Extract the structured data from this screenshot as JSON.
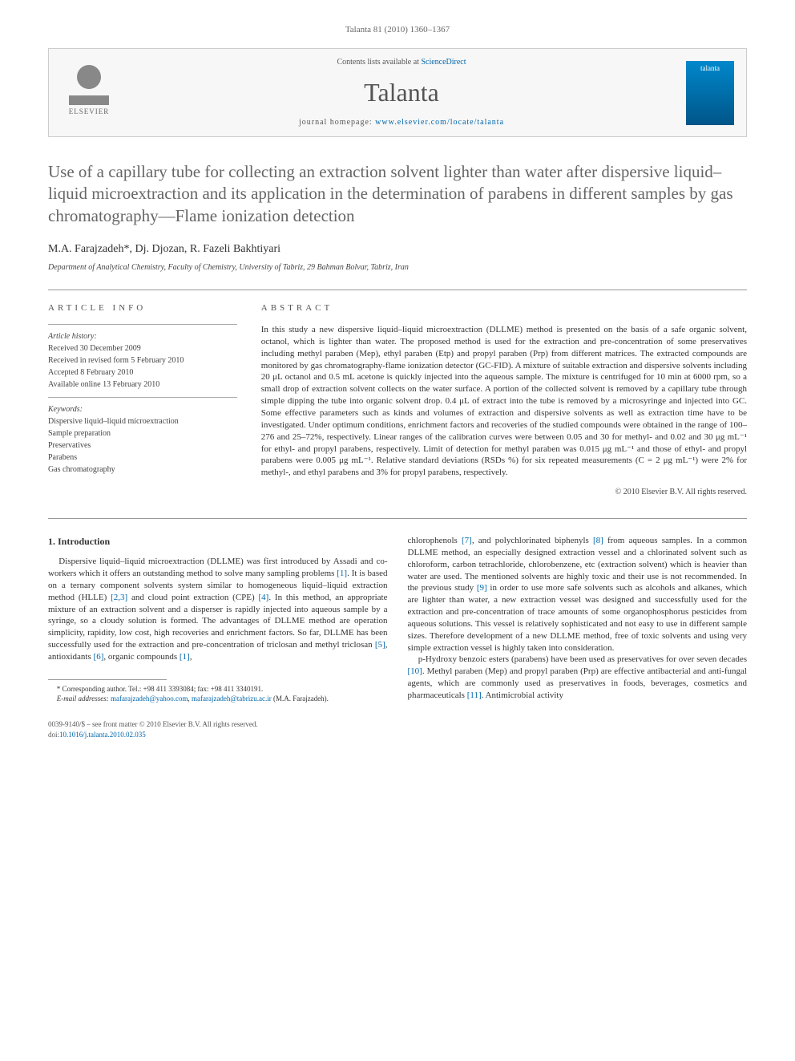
{
  "citation": "Talanta 81 (2010) 1360–1367",
  "header": {
    "publisher": "ELSEVIER",
    "contents_prefix": "Contents lists available at ",
    "contents_link": "ScienceDirect",
    "journal": "Talanta",
    "homepage_prefix": "journal homepage: ",
    "homepage_url": "www.elsevier.com/locate/talanta",
    "cover_label": "talanta"
  },
  "title": "Use of a capillary tube for collecting an extraction solvent lighter than water after dispersive liquid–liquid microextraction and its application in the determination of parabens in different samples by gas chromatography—Flame ionization detection",
  "authors": "M.A. Farajzadeh*, Dj. Djozan, R. Fazeli Bakhtiyari",
  "affiliation": "Department of Analytical Chemistry, Faculty of Chemistry, University of Tabriz, 29 Bahman Bolvar, Tabriz, Iran",
  "article_info": {
    "head": "ARTICLE INFO",
    "history_label": "Article history:",
    "received": "Received 30 December 2009",
    "revised": "Received in revised form 5 February 2010",
    "accepted": "Accepted 8 February 2010",
    "online": "Available online 13 February 2010",
    "keywords_label": "Keywords:",
    "k1": "Dispersive liquid–liquid microextraction",
    "k2": "Sample preparation",
    "k3": "Preservatives",
    "k4": "Parabens",
    "k5": "Gas chromatography"
  },
  "abstract": {
    "head": "ABSTRACT",
    "text": "In this study a new dispersive liquid–liquid microextraction (DLLME) method is presented on the basis of a safe organic solvent, octanol, which is lighter than water. The proposed method is used for the extraction and pre-concentration of some preservatives including methyl paraben (Mep), ethyl paraben (Etp) and propyl paraben (Prp) from different matrices. The extracted compounds are monitored by gas chromatography-flame ionization detector (GC-FID). A mixture of suitable extraction and dispersive solvents including 20 μL octanol and 0.5 mL acetone is quickly injected into the aqueous sample. The mixture is centrifuged for 10 min at 6000 rpm, so a small drop of extraction solvent collects on the water surface. A portion of the collected solvent is removed by a capillary tube through simple dipping the tube into organic solvent drop. 0.4 μL of extract into the tube is removed by a microsyringe and injected into GC. Some effective parameters such as kinds and volumes of extraction and dispersive solvents as well as extraction time have to be investigated. Under optimum conditions, enrichment factors and recoveries of the studied compounds were obtained in the range of 100–276 and 25–72%, respectively. Linear ranges of the calibration curves were between 0.05 and 30 for methyl- and 0.02 and 30 μg mL⁻¹ for ethyl- and propyl parabens, respectively. Limit of detection for methyl paraben was 0.015 μg mL⁻¹ and those of ethyl- and propyl parabens were 0.005 μg mL⁻¹. Relative standard deviations (RSDs %) for six repeated measurements (C = 2 μg mL⁻¹) were 2% for methyl-, and ethyl parabens and 3% for propyl parabens, respectively.",
    "copyright": "© 2010 Elsevier B.V. All rights reserved."
  },
  "intro": {
    "head": "1. Introduction",
    "p1a": "Dispersive liquid–liquid microextraction (DLLME) was first introduced by Assadi and co-workers which it offers an outstanding method to solve many sampling problems ",
    "r1": "[1]",
    "p1b": ". It is based on a ternary component solvents system similar to homogeneous liquid–liquid extraction method (HLLE) ",
    "r23": "[2,3]",
    "p1c": " and cloud point extraction (CPE) ",
    "r4": "[4]",
    "p1d": ". In this method, an appropriate mixture of an extraction solvent and a disperser is rapidly injected into aqueous sample by a syringe, so a cloudy solution is formed. The advantages of DLLME method are operation simplicity, rapidity, low cost, high recoveries and enrichment factors. So far, DLLME has been successfully used for the extraction and pre-concentration of triclosan and methyl triclosan ",
    "r5": "[5]",
    "p1e": ", antioxidants ",
    "r6": "[6]",
    "p1f": ", organic compounds ",
    "r1b": "[1]",
    "p1g": ",",
    "p2a": "chlorophenols ",
    "r7": "[7]",
    "p2b": ", and polychlorinated biphenyls ",
    "r8": "[8]",
    "p2c": " from aqueous samples. In a common DLLME method, an especially designed extraction vessel and a chlorinated solvent such as chloroform, carbon tetrachloride, chlorobenzene, etc (extraction solvent) which is heavier than water are used. The mentioned solvents are highly toxic and their use is not recommended. In the previous study ",
    "r9": "[9]",
    "p2d": " in order to use more safe solvents such as alcohols and alkanes, which are lighter than water, a new extraction vessel was designed and successfully used for the extraction and pre-concentration of trace amounts of some organophosphorus pesticides from aqueous solutions. This vessel is relatively sophisticated and not easy to use in different sample sizes. Therefore development of a new DLLME method, free of toxic solvents and using very simple extraction vessel is highly taken into consideration.",
    "p3a": "p-Hydroxy benzoic esters (parabens) have been used as preservatives for over seven decades ",
    "r10": "[10]",
    "p3b": ". Methyl paraben (Mep) and propyl paraben (Prp) are effective antibacterial and anti-fungal agents, which are commonly used as preservatives in foods, beverages, cosmetics and pharmaceuticals ",
    "r11": "[11]",
    "p3c": ". Antimicrobial activity"
  },
  "footnote": {
    "corr": "* Corresponding author. Tel.: +98 411 3393084; fax: +98 411 3340191.",
    "email_label": "E-mail addresses: ",
    "email1": "mafarajzadeh@yahoo.com",
    "email_sep": ", ",
    "email2": "mafarajzadeh@tabrizu.ac.ir",
    "email_suffix": " (M.A. Farajzadeh)."
  },
  "footer": {
    "issn": "0039-9140/$ – see front matter © 2010 Elsevier B.V. All rights reserved.",
    "doi_label": "doi:",
    "doi": "10.1016/j.talanta.2010.02.035"
  }
}
